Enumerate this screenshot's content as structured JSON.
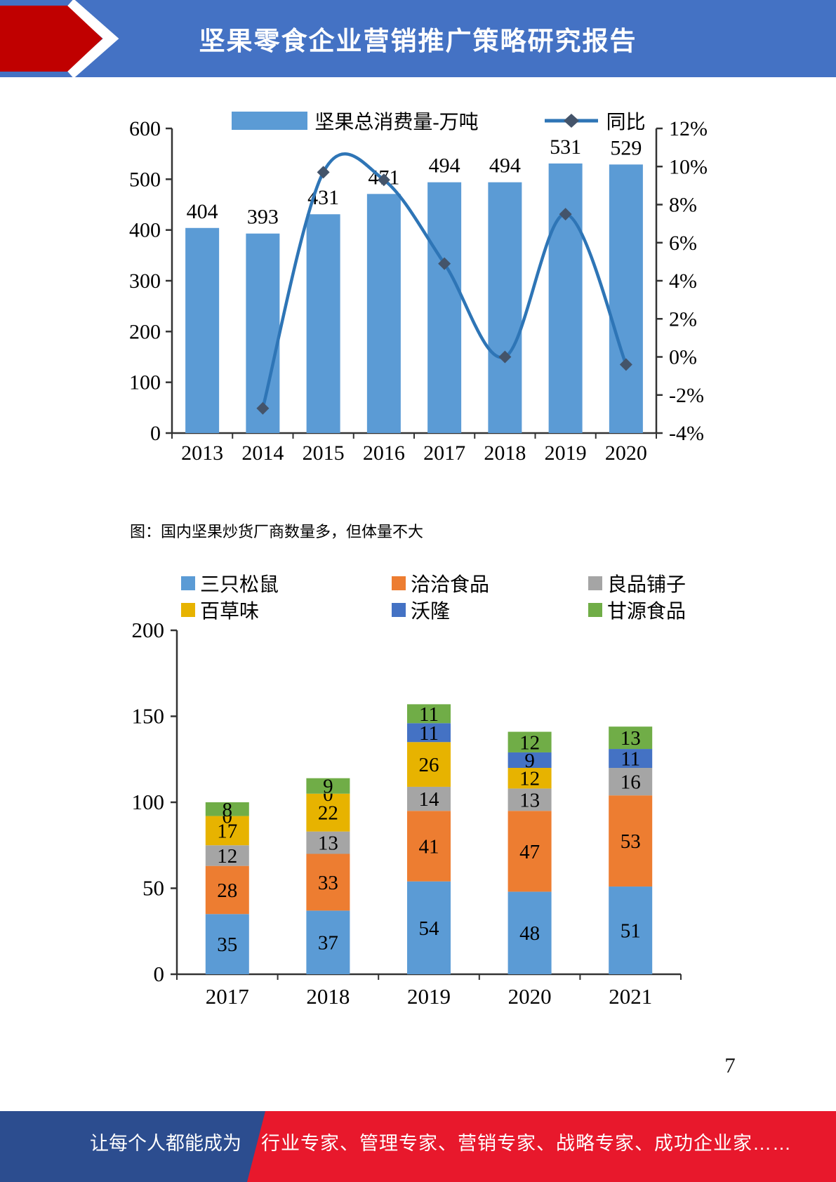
{
  "header": {
    "title": "坚果零食企业营销推广策略研究报告"
  },
  "caption": "图：国内坚果炒货厂商数量多，但体量不大",
  "page_number": "7",
  "footer": {
    "left_text": "让每个人都能成为",
    "right_text": "行业专家、管理专家、营销专家、战略专家、成功企业家……"
  },
  "colors": {
    "header_blue": "#4472C4",
    "chevron_red": "#C00000",
    "bar_blue": "#5B9BD5",
    "line_blue": "#2E75B6",
    "marker_slate": "#44546A",
    "axis_gray": "#333333",
    "footer_blue": "#2C4D8F",
    "footer_red": "#E8182C"
  },
  "chart_data": [
    {
      "type": "bar",
      "subtype": "bar-line-combo",
      "categories": [
        "2013",
        "2014",
        "2015",
        "2016",
        "2017",
        "2018",
        "2019",
        "2020"
      ],
      "series": [
        {
          "name": "坚果总消费量-万吨",
          "kind": "bar",
          "axis": "left",
          "color": "#5B9BD5",
          "values": [
            404,
            393,
            431,
            471,
            494,
            494,
            531,
            529
          ],
          "labels": [
            "404",
            "393",
            "431",
            "471",
            "494",
            "494",
            "531",
            "529"
          ]
        },
        {
          "name": "同比",
          "kind": "line",
          "axis": "right",
          "color": "#2E75B6",
          "marker_color": "#44546A",
          "values": [
            null,
            -2.7,
            9.7,
            9.3,
            4.9,
            0.0,
            7.5,
            -0.4
          ]
        }
      ],
      "left_axis": {
        "min": 0,
        "max": 600,
        "tick_values": [
          0,
          100,
          200,
          300,
          400,
          500,
          600
        ],
        "tick_labels": [
          "0",
          "100",
          "200",
          "300",
          "400",
          "500",
          "600"
        ]
      },
      "right_axis": {
        "min": -4,
        "max": 12,
        "tick_values": [
          -4,
          -2,
          0,
          2,
          4,
          6,
          8,
          10,
          12
        ],
        "tick_labels": [
          "-4%",
          "-2%",
          "0%",
          "2%",
          "4%",
          "6%",
          "8%",
          "10%",
          "12%"
        ]
      },
      "legend_position": "top",
      "grid": false
    },
    {
      "type": "bar",
      "subtype": "stacked",
      "categories": [
        "2017",
        "2018",
        "2019",
        "2020",
        "2021"
      ],
      "series": [
        {
          "name": "三只松鼠",
          "color": "#5B9BD5",
          "values": [
            35,
            37,
            54,
            48,
            51
          ],
          "labels": [
            "35",
            "37",
            "54",
            "48",
            "51"
          ]
        },
        {
          "name": "洽洽食品",
          "color": "#ED7D31",
          "values": [
            28,
            33,
            41,
            47,
            53
          ],
          "labels": [
            "28",
            "33",
            "41",
            "47",
            "53"
          ]
        },
        {
          "name": "良品铺子",
          "color": "#A5A5A5",
          "values": [
            12,
            13,
            14,
            13,
            16
          ],
          "labels": [
            "12",
            "13",
            "14",
            "13",
            "16"
          ]
        },
        {
          "name": "百草味",
          "color": "#E7B300",
          "values": [
            17,
            22,
            26,
            12,
            0
          ],
          "labels": [
            "17",
            "22",
            "26",
            "12",
            ""
          ]
        },
        {
          "name": "沃隆",
          "color": "#4472C4",
          "values": [
            0,
            0,
            11,
            9,
            11
          ],
          "labels": [
            "0",
            "0",
            "11",
            "9",
            "11"
          ]
        },
        {
          "name": "甘源食品",
          "color": "#70AD47",
          "values": [
            8,
            9,
            11,
            12,
            13
          ],
          "labels": [
            "8",
            "9",
            "11",
            "12",
            "13"
          ]
        }
      ],
      "y_axis": {
        "min": 0,
        "max": 200,
        "tick_values": [
          0,
          50,
          100,
          150,
          200
        ],
        "tick_labels": [
          "0",
          "50",
          "100",
          "150",
          "200"
        ]
      },
      "legend_position": "top",
      "legend_rows": [
        [
          "三只松鼠",
          "洽洽食品",
          "良品铺子"
        ],
        [
          "百草味",
          "沃隆",
          "甘源食品"
        ]
      ],
      "grid": false
    }
  ]
}
